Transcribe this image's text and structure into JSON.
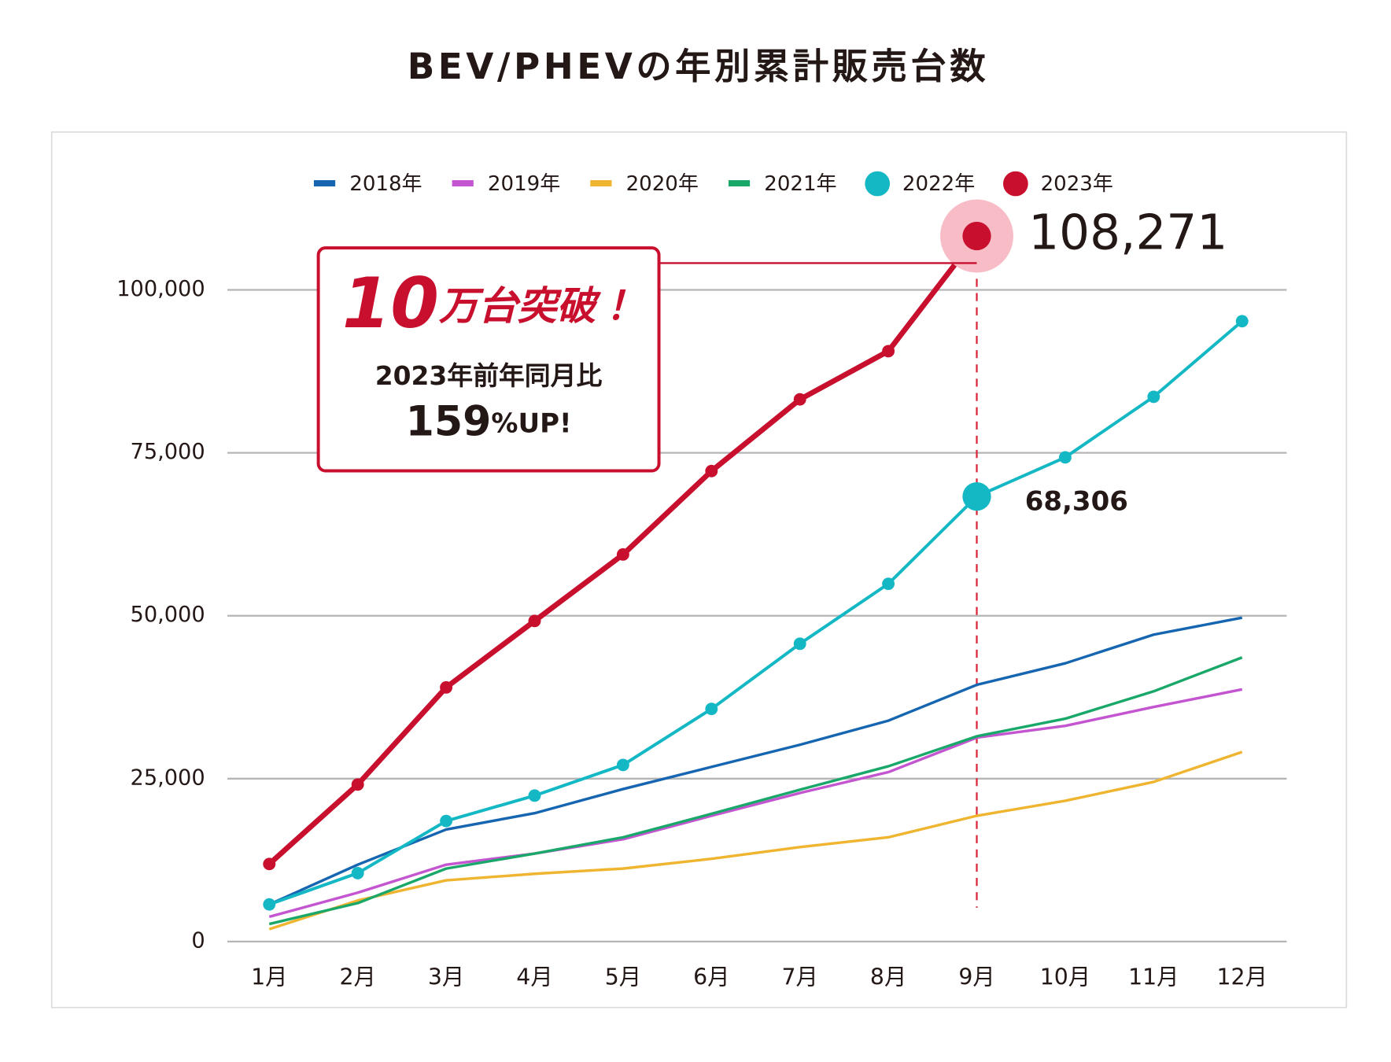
{
  "chart_data": {
    "type": "line",
    "title": "BEV/PHEVの年別累計販売台数",
    "categories": [
      "1月",
      "2月",
      "3月",
      "4月",
      "5月",
      "6月",
      "7月",
      "8月",
      "9月",
      "10月",
      "11月",
      "12月"
    ],
    "series": [
      {
        "name": "2018年",
        "color": "#1565b0",
        "marker": false,
        "values": [
          5700,
          11800,
          17200,
          19700,
          23400,
          26800,
          30200,
          33900,
          39400,
          42700,
          47100,
          49700
        ]
      },
      {
        "name": "2019年",
        "color": "#c455d0",
        "marker": false,
        "values": [
          3800,
          7500,
          11800,
          13500,
          15700,
          19300,
          22800,
          26000,
          31300,
          33100,
          36000,
          38700
        ]
      },
      {
        "name": "2020年",
        "color": "#f0b530",
        "marker": false,
        "values": [
          1900,
          6300,
          9400,
          10400,
          11200,
          12700,
          14500,
          16000,
          19300,
          21600,
          24500,
          29100
        ]
      },
      {
        "name": "2021年",
        "color": "#1aa86a",
        "marker": false,
        "values": [
          2700,
          5900,
          11200,
          13500,
          16000,
          19600,
          23300,
          26900,
          31500,
          34200,
          38400,
          43600
        ]
      },
      {
        "name": "2022年",
        "color": "#14b8c4",
        "marker": true,
        "values": [
          5700,
          10500,
          18500,
          22400,
          27100,
          35700,
          45700,
          54900,
          68306,
          74300,
          83600,
          95200
        ],
        "value_labels": [
          null,
          null,
          null,
          null,
          null,
          null,
          null,
          null,
          "68,306",
          null,
          null,
          null
        ]
      },
      {
        "name": "2023年",
        "color": "#c8102e",
        "marker": true,
        "values": [
          11900,
          24100,
          39000,
          49200,
          59400,
          72200,
          83200,
          90600,
          108271,
          null,
          null,
          null
        ],
        "value_labels": [
          null,
          null,
          null,
          null,
          null,
          null,
          null,
          null,
          "108,271",
          null,
          null,
          null
        ]
      }
    ],
    "ylim": [
      0,
      110000
    ],
    "yticks": [
      0,
      {
        "value": 25000,
        "label": "25,000"
      },
      {
        "value": 50000,
        "label": "50,000"
      },
      {
        "value": 75000,
        "label": "75,000"
      },
      {
        "value": 100000,
        "label": "100,000"
      }
    ],
    "grid": true,
    "legend": "top",
    "callout": {
      "headline_number": "10",
      "headline_text": "万台突破！",
      "line1": "2023年前年同月比",
      "line2_number": "159",
      "line2_text": "%UP!"
    }
  }
}
